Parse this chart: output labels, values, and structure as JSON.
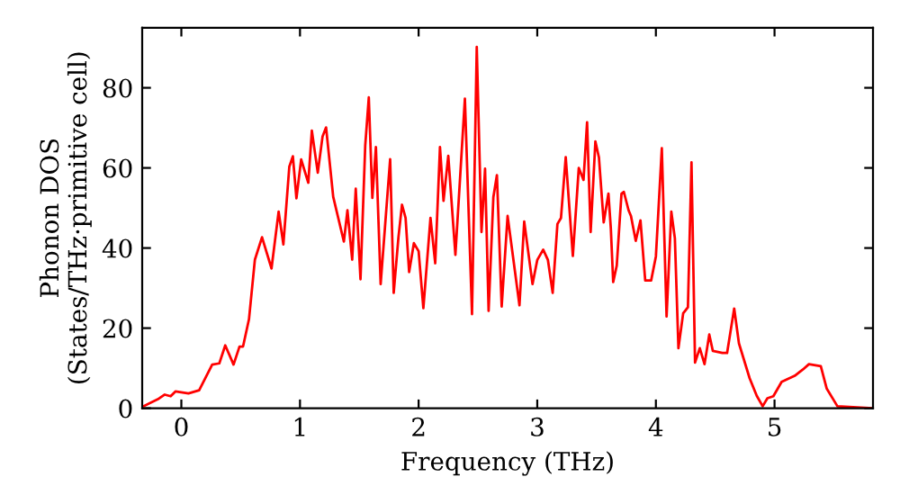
{
  "chart_data": {
    "type": "line",
    "xlabel": "Frequency (THz)",
    "ylabel": "Phonon DOS\n(States/THz·primitive cell)",
    "xlim": [
      -0.33,
      5.83
    ],
    "ylim": [
      0,
      95
    ],
    "xticks": [
      0,
      1,
      2,
      3,
      4,
      5
    ],
    "yticks": [
      0,
      20,
      40,
      60,
      80
    ],
    "grid": false,
    "legend": false,
    "marker": "none",
    "line_style": "solid",
    "series": [
      {
        "color": "#ff0000",
        "x": [
          -0.32,
          -0.19,
          -0.14,
          -0.09,
          -0.05,
          0.06,
          0.15,
          0.26,
          0.32,
          0.37,
          0.44,
          0.49,
          0.52,
          0.57,
          0.62,
          0.68,
          0.76,
          0.82,
          0.86,
          0.91,
          0.94,
          0.97,
          1.01,
          1.07,
          1.1,
          1.15,
          1.19,
          1.22,
          1.28,
          1.37,
          1.4,
          1.44,
          1.47,
          1.51,
          1.55,
          1.58,
          1.61,
          1.64,
          1.68,
          1.76,
          1.79,
          1.83,
          1.86,
          1.89,
          1.92,
          1.96,
          2.0,
          2.04,
          2.1,
          2.14,
          2.18,
          2.21,
          2.25,
          2.31,
          2.39,
          2.45,
          2.49,
          2.53,
          2.56,
          2.59,
          2.63,
          2.66,
          2.7,
          2.75,
          2.85,
          2.89,
          2.96,
          3.0,
          3.05,
          3.09,
          3.13,
          3.17,
          3.2,
          3.24,
          3.3,
          3.35,
          3.39,
          3.42,
          3.45,
          3.49,
          3.52,
          3.56,
          3.6,
          3.62,
          3.64,
          3.67,
          3.71,
          3.73,
          3.77,
          3.79,
          3.83,
          3.87,
          3.91,
          3.96,
          4.0,
          4.05,
          4.09,
          4.13,
          4.16,
          4.19,
          4.23,
          4.27,
          4.3,
          4.33,
          4.37,
          4.41,
          4.45,
          4.48,
          4.56,
          4.6,
          4.66,
          4.7,
          4.79,
          4.85,
          4.9,
          4.94,
          4.99,
          5.06,
          5.17,
          5.24,
          5.29,
          5.39,
          5.44,
          5.53,
          5.83
        ],
        "values": [
          0.5,
          2.4,
          3.4,
          3,
          4.2,
          3.7,
          4.5,
          10.9,
          11.2,
          15.7,
          10.9,
          15.4,
          15.4,
          22.2,
          37.1,
          42.7,
          34.9,
          49.1,
          40.9,
          60.3,
          62.9,
          52.4,
          62.1,
          56.3,
          69.3,
          58.8,
          67.8,
          70.1,
          52.8,
          41.6,
          49.4,
          37.1,
          54.8,
          32.2,
          65.6,
          77.6,
          52.5,
          65.2,
          31,
          62.2,
          28.8,
          42.7,
          50.8,
          47.5,
          34,
          41.2,
          39.2,
          25,
          47.5,
          36.2,
          65.2,
          51.8,
          63,
          38.3,
          77.3,
          23.5,
          90.2,
          44,
          59.8,
          24.3,
          52.7,
          58.2,
          25.4,
          48,
          25.7,
          46.6,
          31,
          37,
          39.6,
          37,
          28.8,
          46,
          47.5,
          62.7,
          38,
          60,
          57,
          71.4,
          44,
          66.6,
          62.6,
          46.4,
          53.6,
          45,
          31.5,
          35.6,
          53.6,
          54,
          49.4,
          48,
          41.8,
          46.9,
          31.9,
          31.9,
          37.9,
          64.9,
          22.9,
          49.1,
          42.4,
          15,
          23.7,
          25.2,
          61.4,
          11.4,
          15,
          11,
          18.4,
          14.3,
          13.8,
          13.8,
          24.9,
          16.2,
          7.5,
          3.1,
          0.5,
          2.5,
          3,
          6.6,
          8.1,
          9.7,
          11,
          10.5,
          4.9,
          0.5,
          0
        ]
      }
    ]
  }
}
